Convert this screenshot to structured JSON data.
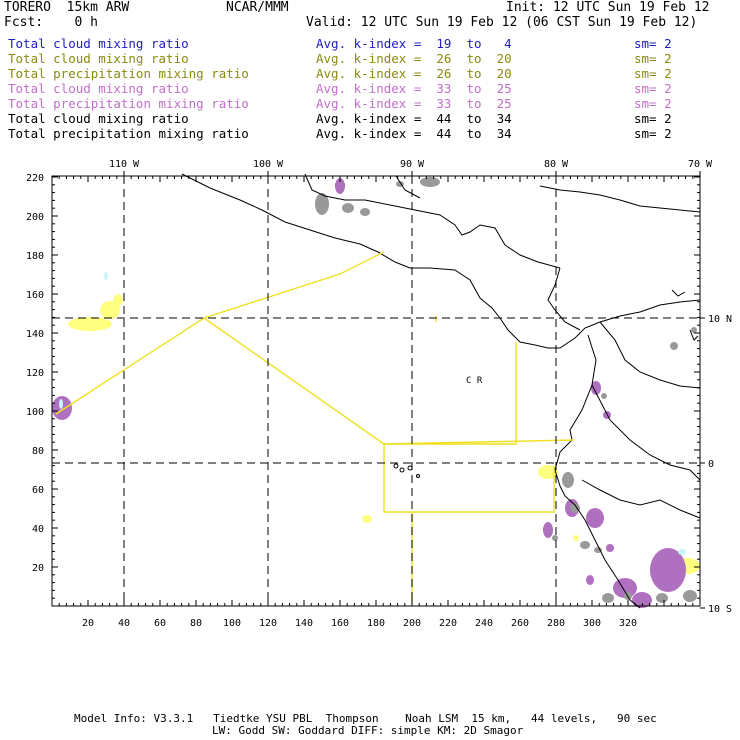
{
  "header": {
    "model": "TORERO  15km ARW",
    "org": "NCAR/MMM",
    "init": "Init: 12 UTC Sun 19 Feb 12",
    "fcst": "Fcst:    0 h",
    "valid": "Valid: 12 UTC Sun 19 Feb 12 (06 CST Sun 19 Feb 12)"
  },
  "legend": [
    {
      "name": "Total cloud mixing ratio",
      "stat": "Avg. k-index =  19  to   4",
      "sm": "sm= 2",
      "color": "#2020c0"
    },
    {
      "name": "Total cloud mixing ratio",
      "stat": "Avg. k-index =  26  to  20",
      "sm": "sm= 2",
      "color": "#8a8a10"
    },
    {
      "name": "Total precipitation mixing ratio",
      "stat": "Avg. k-index =  26  to  20",
      "sm": "sm= 2",
      "color": "#8a8a10"
    },
    {
      "name": "Total cloud mixing ratio",
      "stat": "Avg. k-index =  33  to  25",
      "sm": "sm= 2",
      "color": "#c070c8"
    },
    {
      "name": "Total precipitation mixing ratio",
      "stat": "Avg. k-index =  33  to  25",
      "sm": "sm= 2",
      "color": "#c070c8"
    },
    {
      "name": "Total cloud mixing ratio",
      "stat": "Avg. k-index =  44  to  34",
      "sm": "sm= 2",
      "color": "#000000"
    },
    {
      "name": "Total precipitation mixing ratio",
      "stat": "Avg. k-index =  44  to  34",
      "sm": "sm= 2",
      "color": "#000000"
    }
  ],
  "map": {
    "lon_labels": [
      "110 W",
      "100 W",
      "90 W",
      "80 W",
      "70 W"
    ],
    "lat_labels": [
      "10 N",
      "0",
      "10 S"
    ],
    "x_ticks": [
      "20",
      "40",
      "60",
      "80",
      "100",
      "120",
      "140",
      "160",
      "180",
      "200",
      "220",
      "240",
      "260",
      "280",
      "300",
      "320"
    ],
    "y_ticks": [
      "20",
      "40",
      "60",
      "80",
      "100",
      "120",
      "140",
      "160",
      "180",
      "200",
      "220"
    ],
    "cor_label": "C  R",
    "colors": {
      "flight_track": "#f0e020",
      "cloud_yellow": "#ffff80",
      "cloud_purple": "#b070c0",
      "cloud_gray": "#999999",
      "cloud_cyan": "#c8f4fc"
    }
  },
  "footer": {
    "line1": "Model Info: V3.3.1   Tiedtke YSU PBL  Thompson    Noah LSM  15 km,   44 levels,   90 sec",
    "line2": "LW: Godd SW: Goddard DIFF: simple KM: 2D Smagor"
  }
}
